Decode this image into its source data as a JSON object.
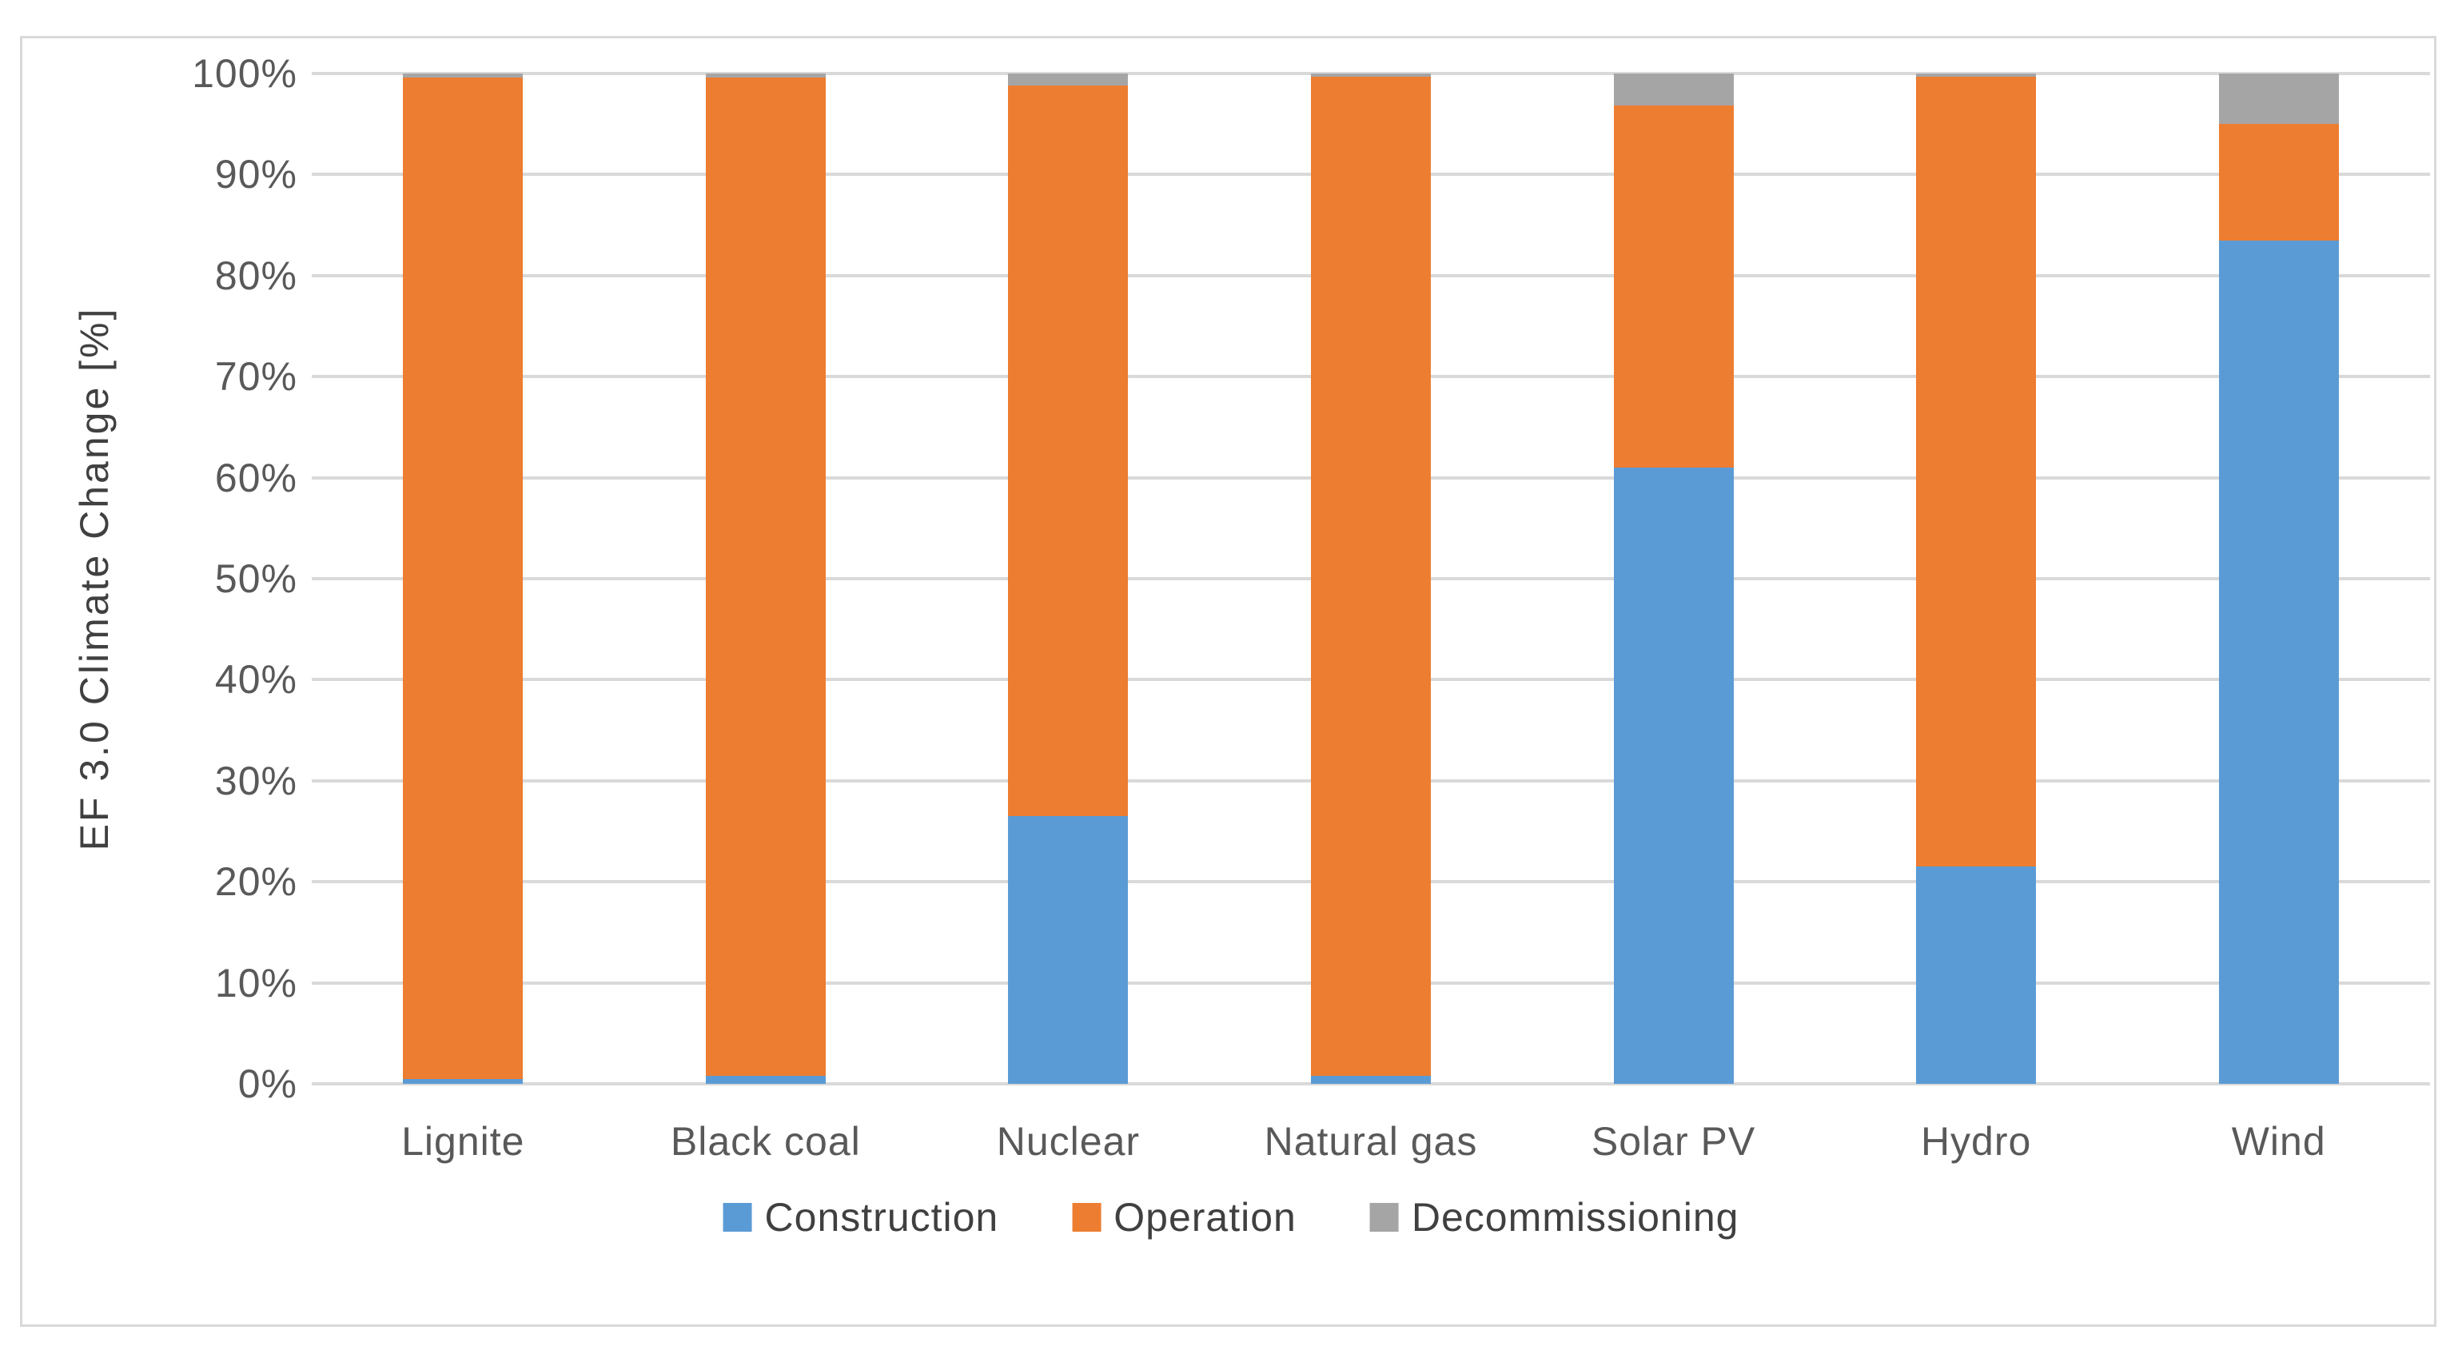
{
  "page": {
    "background": "#FFFFFF"
  },
  "chart_data": {
    "type": "bar",
    "variant": "stacked-100-percent-column",
    "title": "",
    "xlabel": "",
    "ylabel": "EF 3.0 Climate Change [%]",
    "categories": [
      "Lignite",
      "Black coal",
      "Nuclear",
      "Natural gas",
      "Solar PV",
      "Hydro",
      "Wind"
    ],
    "series": [
      {
        "name": "Construction",
        "color": "#5B9BD5",
        "values": [
          0.5,
          0.8,
          26.5,
          0.8,
          61.0,
          21.5,
          83.5
        ]
      },
      {
        "name": "Operation",
        "color": "#ED7D31",
        "values": [
          99.1,
          98.8,
          72.3,
          98.9,
          35.8,
          78.2,
          11.5
        ]
      },
      {
        "name": "Decommissioning",
        "color": "#A5A5A5",
        "values": [
          0.4,
          0.4,
          1.2,
          0.3,
          3.2,
          0.3,
          5.0
        ]
      }
    ],
    "y_ticks": [
      "0%",
      "10%",
      "20%",
      "30%",
      "40%",
      "50%",
      "60%",
      "70%",
      "80%",
      "90%",
      "100%"
    ],
    "ylim": [
      0,
      100
    ],
    "grid": true,
    "gridline_color": "#D9D9D9",
    "axis_line_color": "#D9D9D9",
    "frame_border_color": "#D9D9D9",
    "text_color": "#595959",
    "legend_position": "bottom"
  }
}
